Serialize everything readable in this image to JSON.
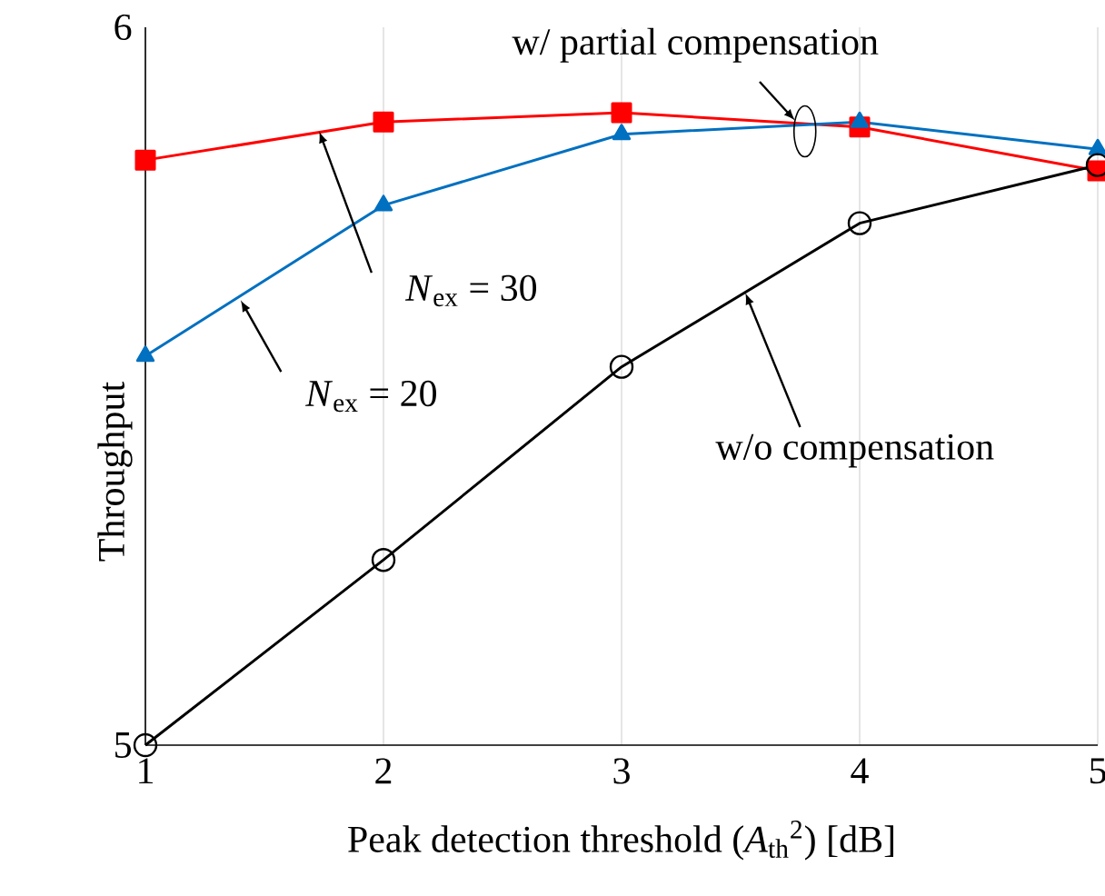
{
  "chart_data": {
    "type": "line",
    "xlabel": "Peak detection threshold (*A*$_{th}$$^{2}$) [dB]",
    "ylabel": "Throughput",
    "x": [
      1,
      2,
      3,
      4,
      5
    ],
    "xlim": [
      1,
      5
    ],
    "xticks": [
      1,
      2,
      3,
      4,
      5
    ],
    "ylim": [
      5,
      6
    ],
    "yticks": [
      5,
      6
    ],
    "grid": "x",
    "series": [
      {
        "color": "#ff0000",
        "marker": "square",
        "values": [
          5.815,
          5.868,
          5.881,
          5.861,
          5.8
        ]
      },
      {
        "color": "#0070c0",
        "marker": "triangle",
        "values": [
          5.542,
          5.752,
          5.851,
          5.868,
          5.83
        ]
      },
      {
        "color": "#000000",
        "marker": "circle",
        "values": [
          5.0,
          5.258,
          5.527,
          5.727,
          5.808
        ]
      }
    ],
    "annotations": [
      {
        "text": "w/ partial compensation",
        "x": 3.77,
        "y": 5.855
      },
      {
        "text": "*N*$_{ex}$ = 30",
        "x": 1.73,
        "y": 5.855
      },
      {
        "text": "*N*$_{ex}$ = 20",
        "x": 1.4,
        "y": 5.62
      },
      {
        "text": "w/o compensation",
        "x": 3.52,
        "y": 5.63
      }
    ]
  }
}
